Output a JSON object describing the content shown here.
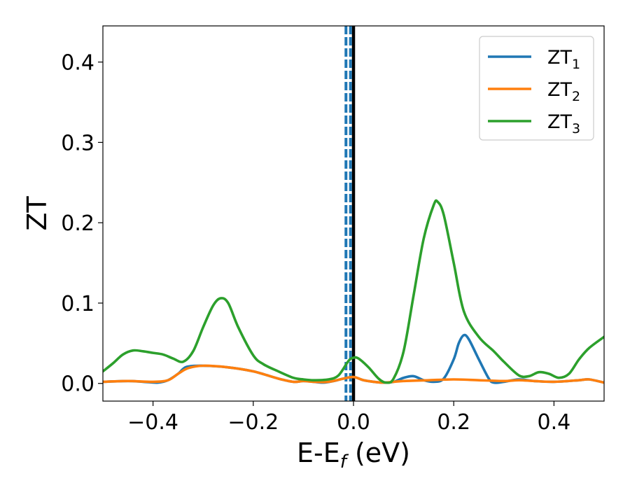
{
  "chart_data": {
    "type": "line",
    "title": "",
    "xlabel": "E-E",
    "xlabel_sub": "f",
    "xlabel_unit": " (eV)",
    "ylabel": "ZT",
    "xlim": [
      -0.5,
      0.5
    ],
    "ylim": [
      -0.022,
      0.445
    ],
    "xticks": [
      -0.4,
      -0.2,
      0.0,
      0.2,
      0.4
    ],
    "xtick_labels": [
      "−0.4",
      "−0.2",
      "0.0",
      "0.2",
      "0.4"
    ],
    "yticks": [
      0.0,
      0.1,
      0.2,
      0.3,
      0.4
    ],
    "ytick_labels": [
      "0.0",
      "0.1",
      "0.2",
      "0.3",
      "0.4"
    ],
    "grid": false,
    "legend_position": "top-right",
    "vlines": [
      {
        "x": 0.0,
        "color": "#000000",
        "style": "solid"
      },
      {
        "x": -0.015,
        "color": "#1f77b4",
        "style": "dashed"
      },
      {
        "x": -0.006,
        "color": "#1f77b4",
        "style": "dashed"
      }
    ],
    "series": [
      {
        "name": "ZT",
        "name_sub": "1",
        "color": "#1f77b4",
        "x": [
          -0.5,
          -0.45,
          -0.42,
          -0.39,
          -0.37,
          -0.35,
          -0.34,
          -0.33,
          -0.3,
          -0.25,
          -0.2,
          -0.15,
          -0.12,
          -0.1,
          -0.08,
          -0.06,
          -0.04,
          -0.02,
          0.0,
          0.02,
          0.04,
          0.06,
          0.08,
          0.1,
          0.12,
          0.14,
          0.16,
          0.18,
          0.2,
          0.21,
          0.22,
          0.23,
          0.25,
          0.27,
          0.28,
          0.3,
          0.33,
          0.36,
          0.4,
          0.45,
          0.47,
          0.5
        ],
        "values": [
          0.002,
          0.003,
          0.002,
          0.001,
          0.004,
          0.012,
          0.018,
          0.021,
          0.022,
          0.02,
          0.015,
          0.006,
          0.002,
          0.003,
          0.002,
          0.001,
          0.003,
          0.006,
          0.008,
          0.004,
          0.002,
          0.001,
          0.002,
          0.007,
          0.009,
          0.004,
          0.002,
          0.006,
          0.03,
          0.05,
          0.06,
          0.055,
          0.03,
          0.006,
          0.001,
          0.002,
          0.005,
          0.003,
          0.002,
          0.004,
          0.005,
          0.001
        ]
      },
      {
        "name": "ZT",
        "name_sub": "2",
        "color": "#ff7f0e",
        "x": [
          -0.5,
          -0.45,
          -0.4,
          -0.37,
          -0.35,
          -0.33,
          -0.3,
          -0.25,
          -0.2,
          -0.15,
          -0.12,
          -0.1,
          -0.08,
          -0.05,
          -0.02,
          0.0,
          0.02,
          0.04,
          0.06,
          0.08,
          0.1,
          0.15,
          0.2,
          0.25,
          0.3,
          0.33,
          0.36,
          0.4,
          0.45,
          0.47,
          0.5
        ],
        "values": [
          0.002,
          0.003,
          0.002,
          0.004,
          0.012,
          0.019,
          0.022,
          0.02,
          0.015,
          0.006,
          0.002,
          0.003,
          0.002,
          0.002,
          0.006,
          0.008,
          0.004,
          0.002,
          0.001,
          0.002,
          0.003,
          0.004,
          0.005,
          0.004,
          0.003,
          0.004,
          0.003,
          0.002,
          0.004,
          0.005,
          0.001
        ]
      },
      {
        "name": "ZT",
        "name_sub": "3",
        "color": "#2ca02c",
        "x": [
          -0.5,
          -0.48,
          -0.46,
          -0.44,
          -0.42,
          -0.4,
          -0.38,
          -0.36,
          -0.34,
          -0.32,
          -0.3,
          -0.28,
          -0.265,
          -0.25,
          -0.23,
          -0.2,
          -0.18,
          -0.15,
          -0.12,
          -0.1,
          -0.08,
          -0.05,
          -0.03,
          -0.01,
          0.0,
          0.01,
          0.03,
          0.05,
          0.065,
          0.08,
          0.1,
          0.12,
          0.14,
          0.16,
          0.168,
          0.18,
          0.2,
          0.22,
          0.25,
          0.28,
          0.3,
          0.33,
          0.35,
          0.37,
          0.39,
          0.41,
          0.43,
          0.45,
          0.47,
          0.5
        ],
        "values": [
          0.015,
          0.025,
          0.036,
          0.041,
          0.04,
          0.038,
          0.036,
          0.031,
          0.027,
          0.04,
          0.07,
          0.097,
          0.106,
          0.1,
          0.07,
          0.035,
          0.024,
          0.015,
          0.007,
          0.005,
          0.004,
          0.005,
          0.01,
          0.028,
          0.032,
          0.031,
          0.02,
          0.006,
          0.001,
          0.006,
          0.04,
          0.11,
          0.18,
          0.222,
          0.226,
          0.21,
          0.15,
          0.09,
          0.058,
          0.04,
          0.027,
          0.01,
          0.009,
          0.014,
          0.012,
          0.007,
          0.012,
          0.03,
          0.044,
          0.058
        ]
      }
    ]
  }
}
